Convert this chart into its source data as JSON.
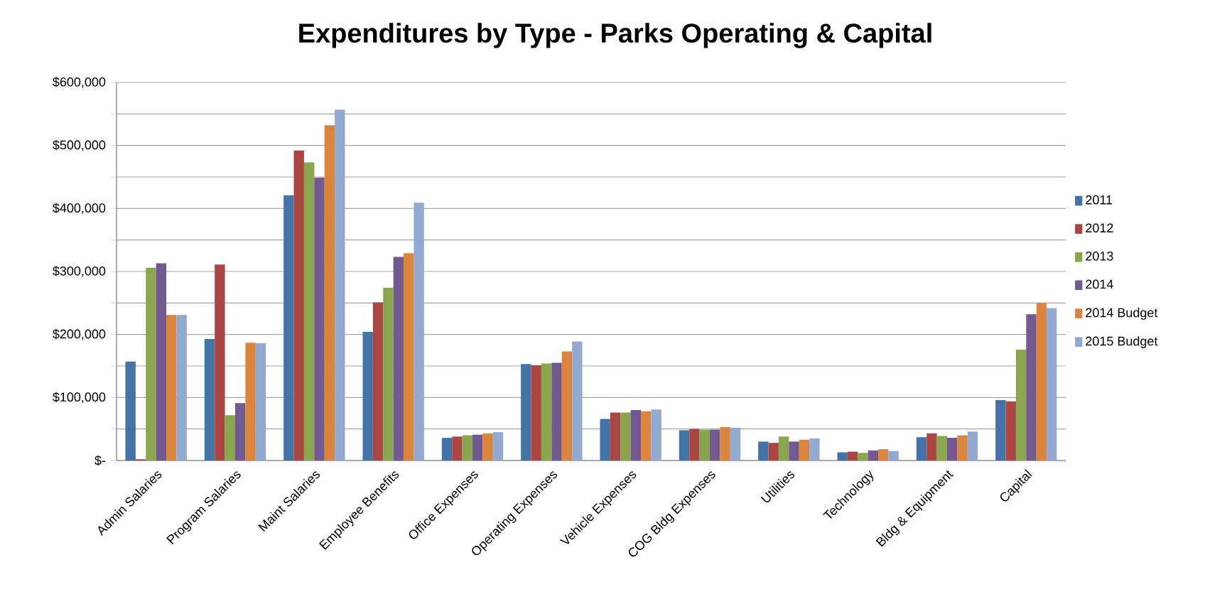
{
  "chart_data": {
    "type": "bar",
    "title": "Expenditures by Type - Parks Operating & Capital",
    "categories": [
      "Admin Salaries",
      "Program Salaries",
      "Maint Salaries",
      "Employee Benefits",
      "Office Expenses",
      "Operating Expenses",
      "Vehicle Expenses",
      "COG Bldg Expenses",
      "Utilities",
      "Technology",
      "Bldg & Equipment",
      "Capital"
    ],
    "series": [
      {
        "name": "2011",
        "color": "#4572a7",
        "values": [
          157000,
          193000,
          421000,
          204000,
          36000,
          153000,
          66000,
          48000,
          30000,
          13000,
          37000,
          96000
        ]
      },
      {
        "name": "2012",
        "color": "#aa4643",
        "values": [
          2000,
          311000,
          492000,
          251000,
          38000,
          151000,
          76000,
          50000,
          28000,
          14000,
          43000,
          94000
        ]
      },
      {
        "name": "2013",
        "color": "#89a54e",
        "values": [
          306000,
          72000,
          473000,
          274000,
          40000,
          154000,
          76000,
          49000,
          38000,
          12000,
          39000,
          176000
        ]
      },
      {
        "name": "2014",
        "color": "#71588f",
        "values": [
          313000,
          91000,
          449000,
          323000,
          41000,
          155000,
          80000,
          49000,
          30000,
          16000,
          36000,
          232000
        ]
      },
      {
        "name": "2014 Budget",
        "color": "#db843d",
        "values": [
          231000,
          187000,
          532000,
          329000,
          43000,
          173000,
          78000,
          53000,
          33000,
          18000,
          40000,
          250000
        ]
      },
      {
        "name": "2015 Budget",
        "color": "#93a9cf",
        "values": [
          231000,
          186000,
          557000,
          409000,
          45000,
          189000,
          81000,
          52000,
          35000,
          15000,
          46000,
          242000
        ]
      }
    ],
    "ylim": [
      0,
      600000
    ],
    "yticks": [
      {
        "value": 0,
        "label": "$-"
      },
      {
        "value": 50000,
        "label": null
      },
      {
        "value": 100000,
        "label": "$100,000"
      },
      {
        "value": 150000,
        "label": null
      },
      {
        "value": 200000,
        "label": "$200,000"
      },
      {
        "value": 250000,
        "label": null
      },
      {
        "value": 300000,
        "label": "$300,000"
      },
      {
        "value": 350000,
        "label": null
      },
      {
        "value": 400000,
        "label": "$400,000"
      },
      {
        "value": 450000,
        "label": null
      },
      {
        "value": 500000,
        "label": "$500,000"
      },
      {
        "value": 550000,
        "label": null
      },
      {
        "value": 600000,
        "label": "$600,000"
      }
    ],
    "grid": true,
    "legend": "right"
  }
}
